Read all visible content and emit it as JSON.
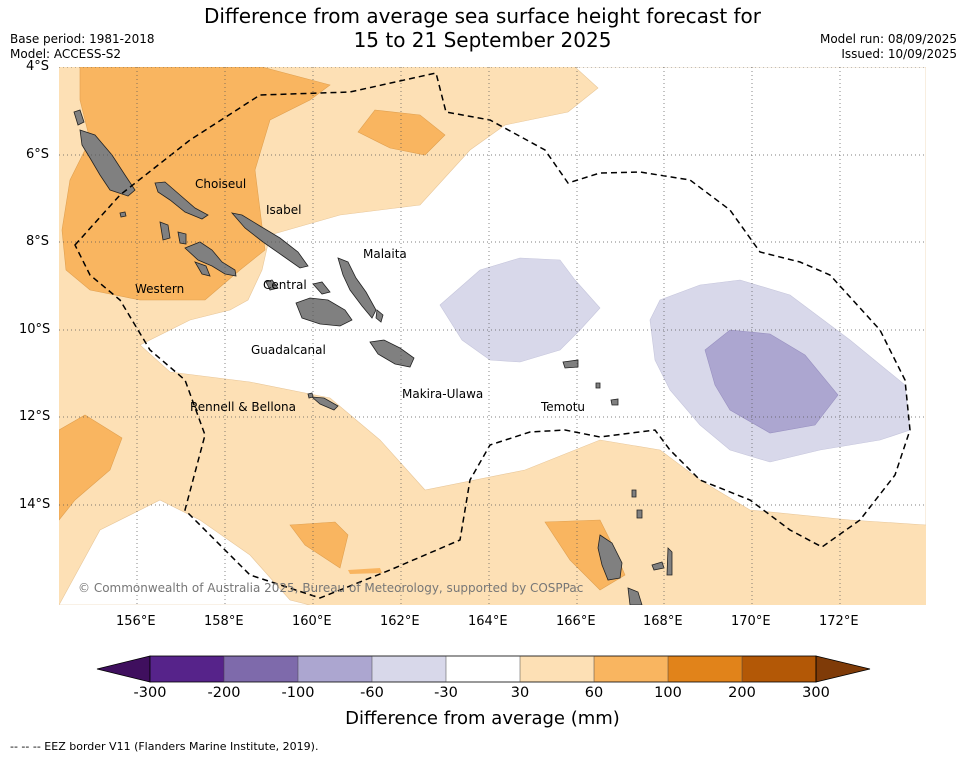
{
  "title_line1": "Difference from average sea surface height forecast for",
  "title_line2": "15 to 21 September 2025",
  "base_period": "Base period: 1981-2018",
  "model": "Model: ACCESS-S2",
  "model_run": "Model run: 08/09/2025",
  "issued": "Issued: 10/09/2025",
  "lat_labels": [
    "4°S",
    "6°S",
    "8°S",
    "10°S",
    "12°S",
    "14°S"
  ],
  "lon_labels": [
    "156°E",
    "158°E",
    "160°E",
    "162°E",
    "164°E",
    "166°E",
    "168°E",
    "170°E",
    "172°E"
  ],
  "place_labels": {
    "choiseul": "Choiseul",
    "isabel": "Isabel",
    "malaita": "Malaita",
    "western": "Western",
    "central": "Central",
    "guadalcanal": "Guadalcanal",
    "makira": "Makira-Ulawa",
    "temotu": "Temotu",
    "rennell": "Rennell & Bellona"
  },
  "copyright": "© Commonwealth of Australia 2025, Bureau of Meteorology, supported by COSPPac",
  "colorbar": {
    "title": "Difference from average (mm)",
    "ticks": [
      "-300",
      "-200",
      "-100",
      "-60",
      "-30",
      "30",
      "60",
      "100",
      "200",
      "300"
    ],
    "colors": [
      "#3f0f5e",
      "#56238a",
      "#7e6aab",
      "#aca6d0",
      "#d8d8ea",
      "#ffffff",
      "#fde0b5",
      "#f9b560",
      "#e1831a",
      "#b35806",
      "#7f3b08"
    ]
  },
  "eez_legend": "--  --  -- EEZ border V11 (Flanders Marine Institute, 2019)."
}
